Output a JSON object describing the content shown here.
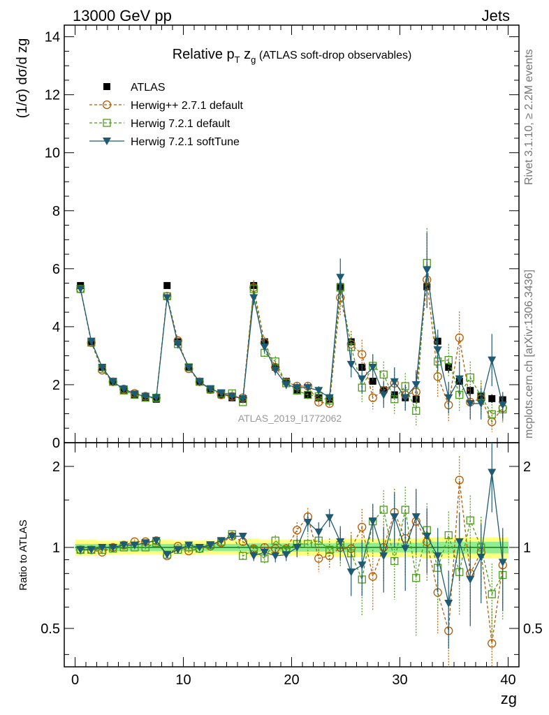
{
  "header": {
    "left": "13000 GeV pp",
    "right": "Jets"
  },
  "side_labels": {
    "rivet": "Rivet 3.1.10, ≥ 2.2M events",
    "mcplots": "mcplots.cern.ch [arXiv:1306.3436]"
  },
  "watermark": "ATLAS_2019_I1772062",
  "colors": {
    "data": "#000000",
    "herwigpp": "#b35a00",
    "herwig721": "#4a9a1a",
    "softtune": "#1f5a73",
    "band_outer": "#ffff80",
    "band_inner": "#90ee90"
  },
  "chart_data": [
    {
      "type": "scatter",
      "title": "Relative pT zg (ATLAS soft-drop observables)",
      "title_parts": {
        "main": "Relative p",
        "sub1": "T",
        "mid": " z",
        "sub2": "g",
        "tail": " (ATLAS soft-drop observables)"
      },
      "xlabel": "zg",
      "ylabel": "(1/σ) dσ/d zg",
      "xlim": [
        -1,
        41
      ],
      "ylim": [
        0,
        14.4
      ],
      "yticks": [
        0,
        2,
        4,
        6,
        8,
        10,
        12,
        14
      ],
      "xticks": [
        0,
        10,
        20,
        30,
        40
      ],
      "legend_position": "top-left",
      "x": [
        0.5,
        1.5,
        2.5,
        3.5,
        4.5,
        5.5,
        6.5,
        7.5,
        8.5,
        9.5,
        10.5,
        11.5,
        12.5,
        13.5,
        14.5,
        15.5,
        16.5,
        17.5,
        18.5,
        19.5,
        20.5,
        21.5,
        22.5,
        23.5,
        24.5,
        25.5,
        26.5,
        27.5,
        28.5,
        29.5,
        30.5,
        31.5,
        32.5,
        33.5,
        34.5,
        35.5,
        36.5,
        37.5,
        38.5,
        39.5
      ],
      "series": [
        {
          "name": "ATLAS",
          "style": "data",
          "values": [
            5.42,
            3.48,
            2.6,
            2.12,
            1.82,
            1.65,
            1.55,
            1.5,
            5.42,
            3.48,
            2.6,
            2.12,
            1.82,
            1.65,
            1.55,
            1.5,
            5.42,
            3.48,
            2.6,
            2.12,
            1.82,
            1.65,
            1.55,
            1.5,
            5.38,
            3.48,
            2.6,
            2.12,
            1.82,
            1.65,
            1.55,
            1.5,
            5.38,
            3.5,
            2.6,
            2.12,
            1.8,
            1.62,
            1.52,
            1.48
          ],
          "errors": [
            0.08,
            0.06,
            0.05,
            0.04,
            0.04,
            0.04,
            0.04,
            0.04,
            0.08,
            0.06,
            0.05,
            0.04,
            0.04,
            0.04,
            0.04,
            0.04,
            0.1,
            0.07,
            0.05,
            0.05,
            0.05,
            0.05,
            0.05,
            0.05,
            0.15,
            0.1,
            0.1,
            0.1,
            0.1,
            0.1,
            0.1,
            0.1,
            0.2,
            0.2,
            0.2,
            0.2,
            0.15,
            0.15,
            0.15,
            0.15
          ]
        },
        {
          "name": "Herwig++ 2.7.1 default",
          "style": "circle",
          "values": [
            5.3,
            3.45,
            2.5,
            2.1,
            1.85,
            1.7,
            1.6,
            1.55,
            5.05,
            3.52,
            2.55,
            2.1,
            1.83,
            1.65,
            1.6,
            1.55,
            5.35,
            3.45,
            2.6,
            2.1,
            1.95,
            1.95,
            1.4,
            1.35,
            5.0,
            3.4,
            3.05,
            1.55,
            1.8,
            2.05,
            1.65,
            1.75,
            5.62,
            2.28,
            1.3,
            3.62,
            1.4,
            1.52,
            0.72,
            1.2
          ],
          "errors": [
            0.1,
            0.1,
            0.08,
            0.07,
            0.07,
            0.07,
            0.07,
            0.07,
            0.15,
            0.15,
            0.1,
            0.1,
            0.1,
            0.1,
            0.1,
            0.1,
            0.25,
            0.2,
            0.18,
            0.15,
            0.15,
            0.15,
            0.15,
            0.15,
            0.6,
            0.45,
            0.5,
            0.4,
            0.45,
            0.5,
            0.45,
            0.5,
            1.0,
            0.7,
            0.55,
            0.9,
            0.55,
            0.55,
            0.35,
            0.45
          ]
        },
        {
          "name": "Herwig 7.2.1 default",
          "style": "square",
          "values": [
            5.3,
            3.45,
            2.55,
            2.1,
            1.8,
            1.65,
            1.55,
            1.55,
            5.05,
            3.4,
            2.6,
            2.1,
            1.85,
            1.7,
            1.7,
            1.4,
            5.3,
            3.1,
            2.8,
            2.05,
            1.8,
            1.65,
            1.6,
            1.45,
            5.35,
            3.3,
            1.9,
            2.65,
            2.35,
            1.5,
            1.95,
            1.1,
            6.2,
            2.8,
            2.85,
            1.65,
            2.25,
            1.6,
            0.98,
            1.15
          ],
          "errors": [
            0.1,
            0.1,
            0.08,
            0.07,
            0.07,
            0.07,
            0.07,
            0.07,
            0.15,
            0.15,
            0.1,
            0.1,
            0.1,
            0.1,
            0.1,
            0.1,
            0.25,
            0.2,
            0.18,
            0.15,
            0.15,
            0.15,
            0.15,
            0.15,
            0.6,
            0.45,
            0.5,
            0.4,
            0.45,
            0.5,
            0.45,
            0.5,
            1.2,
            0.7,
            0.55,
            0.55,
            0.55,
            0.55,
            0.35,
            0.45
          ]
        },
        {
          "name": "Herwig 7.2.1 softTune",
          "style": "triangle",
          "values": [
            5.3,
            3.5,
            2.6,
            2.1,
            1.85,
            1.68,
            1.6,
            1.55,
            5.0,
            3.4,
            2.6,
            2.1,
            1.85,
            1.72,
            1.6,
            1.52,
            5.0,
            3.3,
            2.5,
            2.0,
            1.9,
            1.9,
            1.8,
            1.55,
            5.7,
            2.7,
            2.2,
            2.6,
            1.65,
            2.1,
            1.55,
            2.0,
            5.95,
            3.2,
            1.55,
            2.2,
            1.35,
            1.35,
            2.85,
            1.3
          ],
          "errors": [
            0.1,
            0.1,
            0.08,
            0.07,
            0.07,
            0.07,
            0.07,
            0.07,
            0.15,
            0.15,
            0.1,
            0.1,
            0.1,
            0.1,
            0.1,
            0.1,
            0.25,
            0.2,
            0.18,
            0.15,
            0.15,
            0.15,
            0.15,
            0.15,
            0.65,
            0.45,
            0.5,
            0.45,
            0.45,
            0.5,
            0.45,
            0.5,
            1.3,
            0.7,
            0.55,
            0.6,
            0.55,
            0.55,
            0.9,
            0.45
          ]
        }
      ]
    },
    {
      "type": "scatter",
      "title": "",
      "ylabel": "Ratio to ATLAS",
      "xlabel": "zg",
      "xlim": [
        -1,
        41
      ],
      "ylim": [
        0.36,
        2.45
      ],
      "yscale": "log",
      "yticks": [
        0.5,
        1,
        2
      ],
      "xticks": [
        0,
        10,
        20,
        30,
        40
      ],
      "x": [
        0.5,
        1.5,
        2.5,
        3.5,
        4.5,
        5.5,
        6.5,
        7.5,
        8.5,
        9.5,
        10.5,
        11.5,
        12.5,
        13.5,
        14.5,
        15.5,
        16.5,
        17.5,
        18.5,
        19.5,
        20.5,
        21.5,
        22.5,
        23.5,
        24.5,
        25.5,
        26.5,
        27.5,
        28.5,
        29.5,
        30.5,
        31.5,
        32.5,
        33.5,
        34.5,
        35.5,
        36.5,
        37.5,
        38.5,
        39.5
      ],
      "band_inner": [
        0.03,
        0.03,
        0.03,
        0.03,
        0.03,
        0.03,
        0.03,
        0.03,
        0.03,
        0.03,
        0.03,
        0.03,
        0.03,
        0.03,
        0.03,
        0.03,
        0.035,
        0.035,
        0.035,
        0.035,
        0.035,
        0.035,
        0.035,
        0.035,
        0.04,
        0.04,
        0.04,
        0.04,
        0.04,
        0.04,
        0.04,
        0.04,
        0.05,
        0.05,
        0.05,
        0.05,
        0.05,
        0.05,
        0.05,
        0.05
      ],
      "band_outer": [
        0.07,
        0.07,
        0.06,
        0.06,
        0.06,
        0.06,
        0.06,
        0.06,
        0.07,
        0.06,
        0.06,
        0.06,
        0.06,
        0.06,
        0.06,
        0.06,
        0.08,
        0.07,
        0.07,
        0.07,
        0.07,
        0.07,
        0.07,
        0.07,
        0.08,
        0.08,
        0.08,
        0.08,
        0.08,
        0.08,
        0.08,
        0.08,
        0.09,
        0.09,
        0.09,
        0.09,
        0.09,
        0.09,
        0.09,
        0.09
      ],
      "series": [
        {
          "name": "Herwig++ 2.7.1 default",
          "style": "circle",
          "values": [
            0.98,
            0.98,
            0.96,
            1.0,
            1.02,
            1.05,
            1.05,
            1.06,
            0.93,
            1.01,
            0.97,
            0.99,
            1.01,
            1.04,
            1.1,
            1.05,
            0.99,
            1.0,
            0.99,
            0.99,
            1.16,
            1.3,
            0.91,
            0.93,
            1.0,
            0.99,
            1.19,
            0.78,
            1.0,
            1.35,
            1.08,
            1.25,
            1.05,
            0.68,
            0.49,
            1.78,
            0.8,
            0.96,
            0.44,
            0.86
          ],
          "errors": [
            0.02,
            0.02,
            0.02,
            0.02,
            0.02,
            0.02,
            0.02,
            0.02,
            0.02,
            0.02,
            0.02,
            0.02,
            0.02,
            0.03,
            0.03,
            0.03,
            0.03,
            0.03,
            0.04,
            0.04,
            0.08,
            0.1,
            0.1,
            0.1,
            0.15,
            0.15,
            0.2,
            0.2,
            0.25,
            0.3,
            0.3,
            0.35,
            0.3,
            0.2,
            0.15,
            0.4,
            0.25,
            0.3,
            0.15,
            0.25
          ]
        },
        {
          "name": "Herwig 7.2.1 default",
          "style": "square",
          "values": [
            0.98,
            0.98,
            0.98,
            0.99,
            1.0,
            1.0,
            1.0,
            1.04,
            0.94,
            0.98,
            1.0,
            0.99,
            1.02,
            1.05,
            1.12,
            0.93,
            0.98,
            0.91,
            1.06,
            0.98,
            1.03,
            1.03,
            1.06,
            0.98,
            1.02,
            0.95,
            0.76,
            1.25,
            1.38,
            0.89,
            1.38,
            0.77,
            1.16,
            0.84,
            1.11,
            0.81,
            1.26,
            1.0,
            0.67,
            0.79
          ],
          "errors": [
            0.02,
            0.02,
            0.02,
            0.02,
            0.02,
            0.02,
            0.02,
            0.02,
            0.02,
            0.02,
            0.02,
            0.02,
            0.02,
            0.03,
            0.03,
            0.03,
            0.04,
            0.04,
            0.05,
            0.05,
            0.08,
            0.1,
            0.1,
            0.1,
            0.15,
            0.15,
            0.2,
            0.2,
            0.25,
            0.25,
            0.3,
            0.3,
            0.3,
            0.25,
            0.25,
            0.25,
            0.3,
            0.3,
            0.2,
            0.25
          ]
        },
        {
          "name": "Herwig 7.2.1 softTune",
          "style": "triangle",
          "values": [
            0.98,
            0.98,
            1.0,
            1.0,
            1.02,
            1.02,
            1.04,
            1.06,
            0.94,
            0.98,
            1.02,
            1.0,
            1.02,
            1.06,
            1.1,
            1.1,
            0.93,
            0.96,
            0.93,
            0.94,
            1.0,
            1.24,
            1.14,
            1.29,
            1.05,
            0.81,
            0.86,
            1.25,
            0.93,
            1.3,
            0.99,
            1.3,
            1.1,
            0.93,
            0.62,
            1.05,
            0.76,
            0.92,
            1.9,
            0.88
          ],
          "errors": [
            0.02,
            0.02,
            0.02,
            0.02,
            0.02,
            0.02,
            0.02,
            0.02,
            0.02,
            0.02,
            0.02,
            0.02,
            0.02,
            0.03,
            0.03,
            0.03,
            0.04,
            0.04,
            0.05,
            0.05,
            0.08,
            0.1,
            0.1,
            0.1,
            0.15,
            0.15,
            0.2,
            0.2,
            0.25,
            0.3,
            0.3,
            0.35,
            0.3,
            0.25,
            0.2,
            0.3,
            0.25,
            0.3,
            0.55,
            0.3
          ]
        }
      ]
    }
  ]
}
